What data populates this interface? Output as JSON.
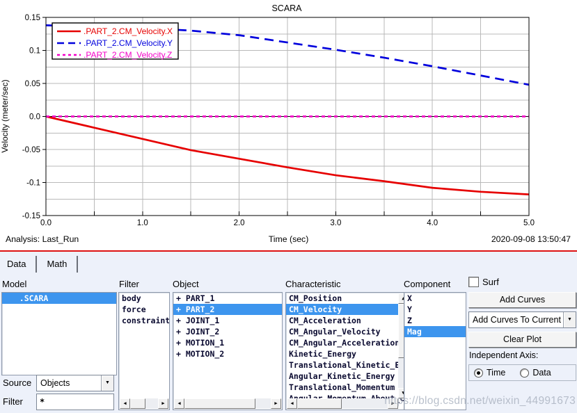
{
  "chart_data": {
    "type": "line",
    "title": "SCARA",
    "xlabel": "Time (sec)",
    "ylabel": "Velocity (meter/sec)",
    "xlim": [
      0.0,
      5.0
    ],
    "ylim": [
      -0.15,
      0.15
    ],
    "x_tick_step": 1.0,
    "y_tick_step": 0.05,
    "x_grid_step": 0.5,
    "y_grid_step": 0.025,
    "grid": true,
    "zero_line": true,
    "legend_position": "top-left",
    "x": [
      0.0,
      0.5,
      1.0,
      1.5,
      2.0,
      2.5,
      3.0,
      3.5,
      4.0,
      4.5,
      5.0
    ],
    "series": [
      {
        "name": ".PART_2.CM_Velocity.X",
        "color": "#e60000",
        "dash": "solid",
        "values": [
          0.0,
          -0.017,
          -0.034,
          -0.051,
          -0.064,
          -0.077,
          -0.089,
          -0.098,
          -0.108,
          -0.114,
          -0.118
        ]
      },
      {
        "name": ".PART_2.CM_Velocity.Y",
        "color": "#0000dd",
        "dash": "long-dash",
        "values": [
          0.138,
          0.136,
          0.134,
          0.13,
          0.123,
          0.112,
          0.101,
          0.089,
          0.076,
          0.062,
          0.048
        ]
      },
      {
        "name": ".PART_2.CM_Velocity.Z",
        "color": "#f400c8",
        "dash": "short-dash",
        "values": [
          0.0,
          0.0,
          0.0,
          0.0,
          0.0,
          0.0,
          0.0,
          0.0,
          0.0,
          0.0,
          0.0
        ]
      }
    ]
  },
  "footer": {
    "analysis": "Analysis: Last_Run",
    "xlabel": "Time (sec)",
    "timestamp": "2020-09-08 13:50:47"
  },
  "panel": {
    "tabs": [
      {
        "label": "Data"
      },
      {
        "label": "Math"
      }
    ],
    "model": {
      "label": "Model",
      "items": [
        {
          "text": "   .SCARA",
          "selected": true
        }
      ]
    },
    "filter_list": {
      "label": "Filter",
      "items": [
        {
          "text": "body"
        },
        {
          "text": "force"
        },
        {
          "text": "constraint"
        }
      ]
    },
    "object": {
      "label": "Object",
      "items": [
        {
          "text": "+ PART_1"
        },
        {
          "text": "+ PART_2",
          "selected": true
        },
        {
          "text": "+ JOINT_1"
        },
        {
          "text": "+ JOINT_2"
        },
        {
          "text": "+ MOTION_1"
        },
        {
          "text": "+ MOTION_2"
        }
      ]
    },
    "characteristic": {
      "label": "Characteristic",
      "items": [
        {
          "text": "CM_Position"
        },
        {
          "text": "CM_Velocity",
          "selected": true
        },
        {
          "text": "CM_Acceleration"
        },
        {
          "text": "CM_Angular_Velocity"
        },
        {
          "text": "CM_Angular_Acceleration"
        },
        {
          "text": "Kinetic_Energy"
        },
        {
          "text": "Translational_Kinetic_Energy"
        },
        {
          "text": "Angular_Kinetic_Energy"
        },
        {
          "text": "Translational_Momentum"
        },
        {
          "text": "Angular_Momentum_About_CM"
        }
      ]
    },
    "component": {
      "label": "Component",
      "items": [
        {
          "text": "X"
        },
        {
          "text": "Y"
        },
        {
          "text": "Z"
        },
        {
          "text": "Mag",
          "selected": true
        }
      ]
    },
    "surf": {
      "label": "Surf",
      "checked": false
    },
    "actions": {
      "add_curves": "Add Curves",
      "add_mode": "Add Curves To Current",
      "clear_plot": "Clear Plot"
    },
    "independent_axis": {
      "label": "Independent Axis:",
      "options": [
        "Time",
        "Data"
      ],
      "selected": "Time"
    },
    "source_row": {
      "label": "Source",
      "value": "Objects"
    },
    "filter_row": {
      "label": "Filter",
      "value": "*"
    }
  },
  "watermark": "https://blog.csdn.net/weixin_44991673"
}
